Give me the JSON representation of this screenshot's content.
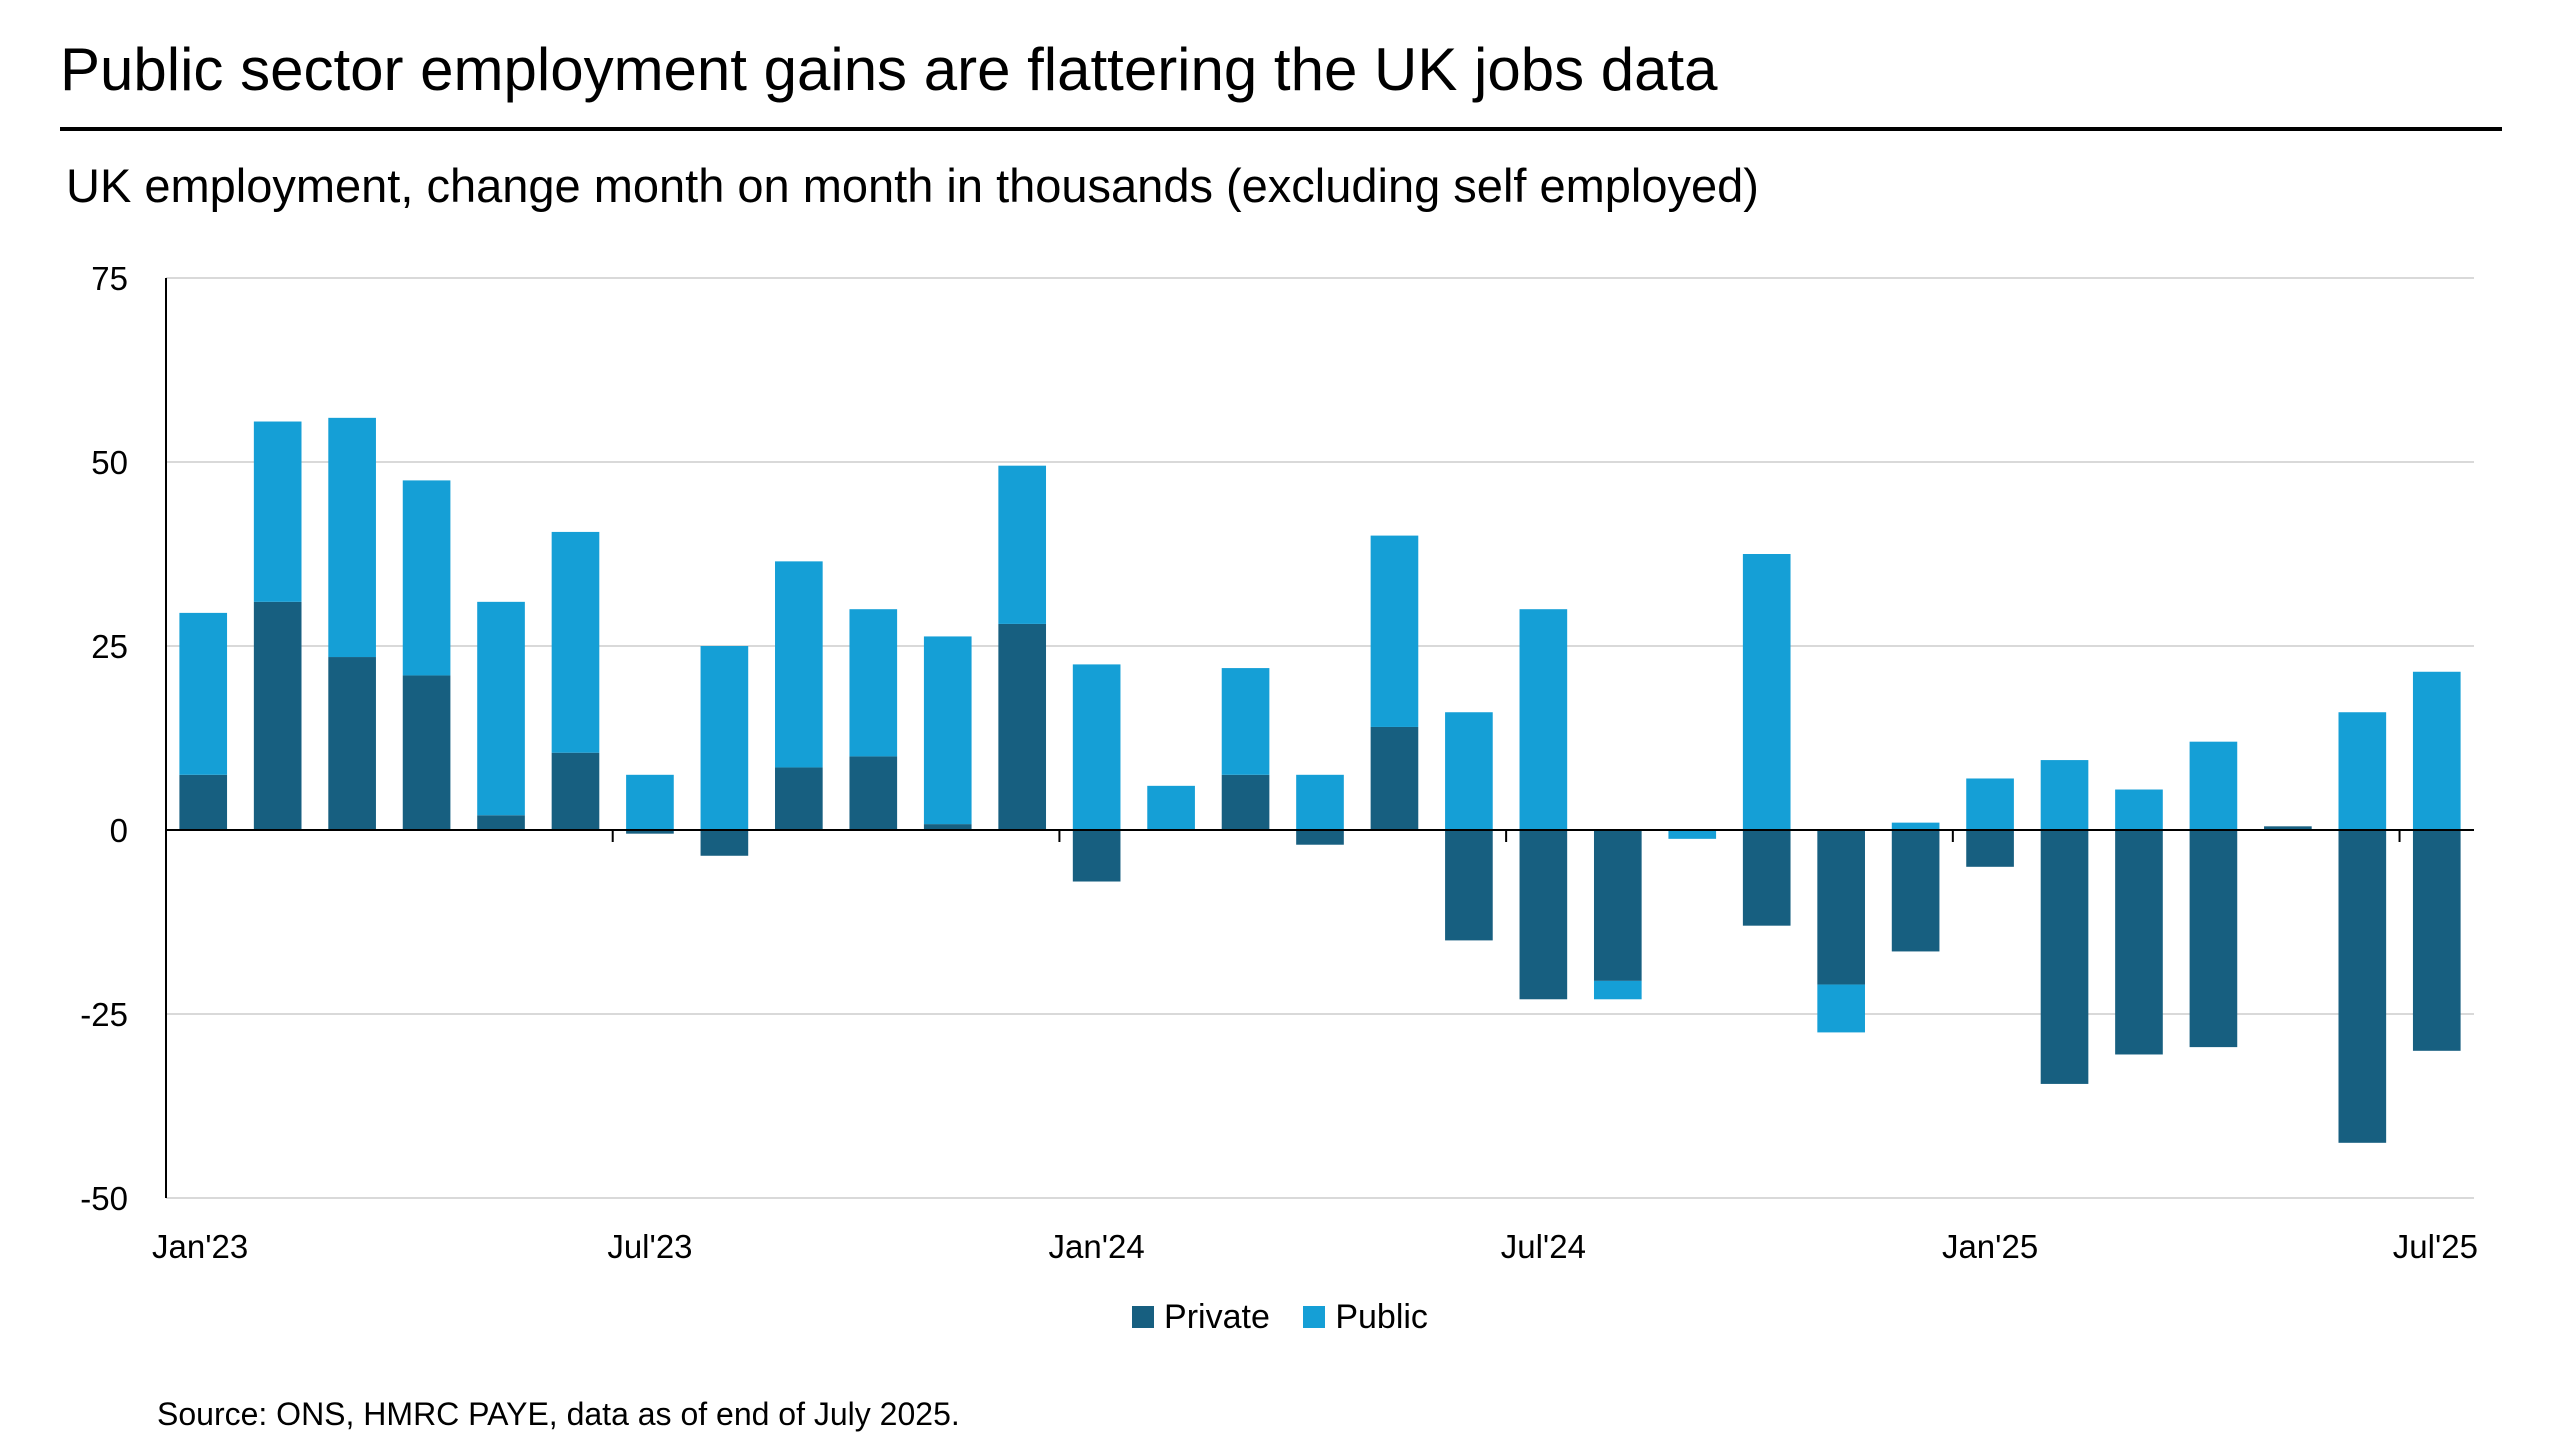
{
  "title": "Public sector employment gains are flattering the UK jobs data",
  "source": "Source: ONS, HMRC PAYE, data as of end of July 2025.",
  "colors": {
    "private": "#175f80",
    "public": "#159fd6",
    "grid": "#d9d9d9",
    "axis": "#000000"
  },
  "chart_data": {
    "type": "bar",
    "stacked": true,
    "title": "UK employment, change month on month in thousands (excluding self employed)",
    "xlabel": "",
    "ylabel": "",
    "ylim": [
      -50,
      75
    ],
    "yticks": [
      75,
      50,
      25,
      0,
      -25,
      -50
    ],
    "ytick_labels": [
      "75",
      "50",
      "25",
      "0",
      "-25",
      "-50"
    ],
    "xtick_labels": [
      {
        "month": "Jan'23",
        "label": "Jan'23"
      },
      {
        "month": "Jul'23",
        "label": "Jul'23"
      },
      {
        "month": "Jan'24",
        "label": "Jan'24"
      },
      {
        "month": "Jul'24",
        "label": "Jul'24"
      },
      {
        "month": "Jan'25",
        "label": "Jan'25"
      },
      {
        "month": "Jul'25",
        "label": "Jul'25"
      }
    ],
    "grid": true,
    "legend": "bottom-center",
    "categories": [
      "Jan'23",
      "Feb'23",
      "Mar'23",
      "Apr'23",
      "May'23",
      "Jun'23",
      "Jul'23",
      "Aug'23",
      "Sep'23",
      "Oct'23",
      "Nov'23",
      "Dec'23",
      "Jan'24",
      "Feb'24",
      "Mar'24",
      "Apr'24",
      "May'24",
      "Jun'24",
      "Jul'24",
      "Aug'24",
      "Sep'24",
      "Oct'24",
      "Nov'24",
      "Dec'24",
      "Jan'25",
      "Feb'25",
      "Mar'25",
      "Apr'25",
      "May'25",
      "Jun'25",
      "Jul'25"
    ],
    "series": [
      {
        "name": "Private",
        "values": [
          7.5,
          31,
          23.5,
          21,
          2,
          10.5,
          -0.5,
          -3.5,
          8.5,
          10,
          0.8,
          28,
          -7,
          0,
          7.5,
          -2,
          14,
          -15,
          -23,
          -20.5,
          0,
          -13,
          -21,
          -16.5,
          -5,
          -34.5,
          -30.5,
          -29.5,
          0.5,
          -42.5,
          -30
        ]
      },
      {
        "name": "Public",
        "values": [
          22,
          24.5,
          32.5,
          26.5,
          29,
          30,
          7.5,
          25,
          28,
          20,
          25.5,
          21.5,
          22.5,
          6,
          14.5,
          7.5,
          26,
          16,
          30,
          -2.5,
          -1.2,
          37.5,
          -6.5,
          1,
          7,
          9.5,
          5.5,
          12,
          0,
          16,
          21.5
        ]
      }
    ]
  },
  "legend_items": [
    {
      "label": "Private",
      "color_key": "private"
    },
    {
      "label": "Public",
      "color_key": "public"
    }
  ]
}
